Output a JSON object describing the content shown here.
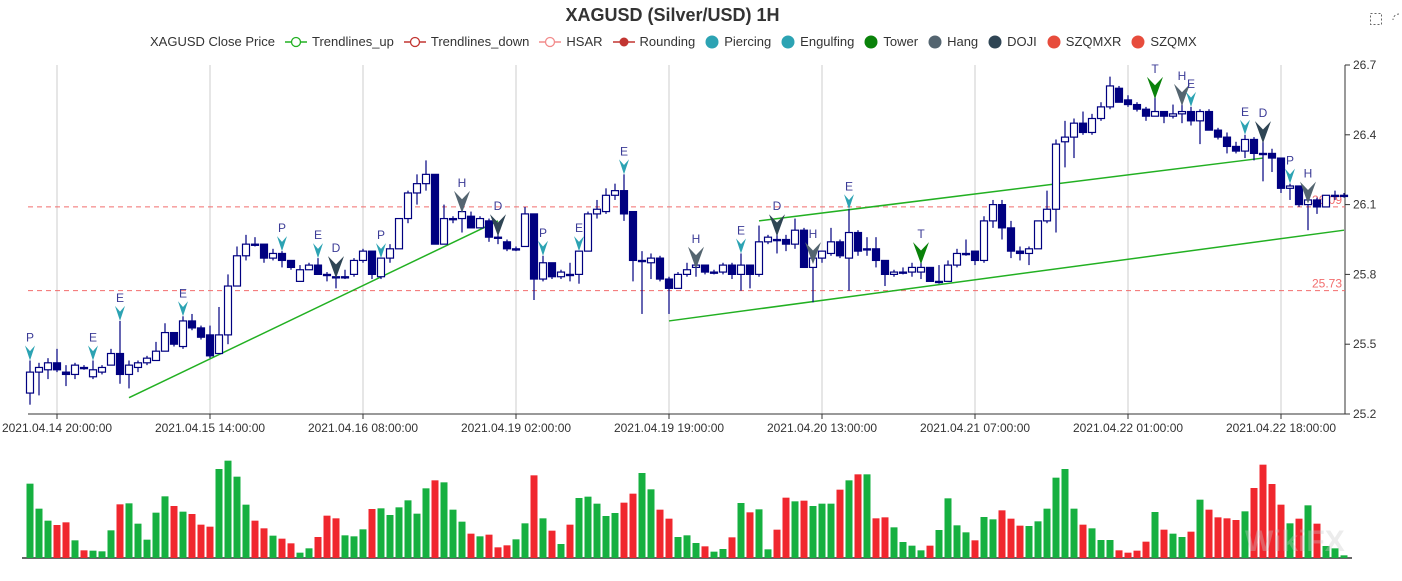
{
  "title": "XAGUSD (Silver/USD) 1H",
  "watermark": "WikiFX",
  "toolbox": [
    "zoom-icon",
    "restore-icon"
  ],
  "legend": [
    {
      "label": "XAGUSD Close Price",
      "icon": "none",
      "color": "#000080"
    },
    {
      "label": "Trendlines_up",
      "icon": "line-circle",
      "color": "#22b022"
    },
    {
      "label": "Trendlines_down",
      "icon": "line-circle",
      "color": "#c23531"
    },
    {
      "label": "HSAR",
      "icon": "line-circle",
      "color": "#f28b8b"
    },
    {
      "label": "Rounding",
      "icon": "line-dot",
      "color": "#c23531"
    },
    {
      "label": "Piercing",
      "icon": "dot",
      "color": "#2ca3b3"
    },
    {
      "label": "Engulfing",
      "icon": "dot",
      "color": "#2ca3b3"
    },
    {
      "label": "Tower",
      "icon": "dot",
      "color": "#0a820a"
    },
    {
      "label": "Hang",
      "icon": "dot",
      "color": "#546570"
    },
    {
      "label": "DOJI",
      "icon": "dot",
      "color": "#2f4554"
    },
    {
      "label": "SZQMXR",
      "icon": "dot",
      "color": "#e74c3c"
    },
    {
      "label": "SZQMX",
      "icon": "dot",
      "color": "#e74c3c"
    }
  ],
  "chart_data": {
    "type": "candlestick",
    "title": "XAGUSD (Silver/USD) 1H",
    "ylim": [
      25.2,
      26.7
    ],
    "yticks": [
      25.2,
      25.5,
      25.8,
      26.1,
      26.4,
      26.7
    ],
    "xtick_labels": [
      "2021.04.14 20:00:00",
      "2021.04.15 14:00:00",
      "2021.04.16 08:00:00",
      "2021.04.19 02:00:00",
      "2021.04.19 19:00:00",
      "2021.04.20 13:00:00",
      "2021.04.21 07:00:00",
      "2021.04.22 01:00:00",
      "2021.04.22 18:00:00"
    ],
    "xtick_first_index": 3,
    "xtick_every": 17,
    "grid_x": true,
    "candle_color": "#000080",
    "ohlc_format": [
      "open",
      "close",
      "low",
      "high"
    ],
    "ohlc": [
      [
        25.29,
        25.38,
        25.24,
        25.43
      ],
      [
        25.38,
        25.4,
        25.28,
        25.42
      ],
      [
        25.39,
        25.42,
        25.35,
        25.44
      ],
      [
        25.42,
        25.39,
        25.38,
        25.48
      ],
      [
        25.38,
        25.37,
        25.32,
        25.41
      ],
      [
        25.37,
        25.41,
        25.35,
        25.42
      ],
      [
        25.4,
        25.4,
        25.39,
        25.41
      ],
      [
        25.36,
        25.39,
        25.35,
        25.43
      ],
      [
        25.38,
        25.4,
        25.37,
        25.41
      ],
      [
        25.41,
        25.46,
        25.41,
        25.48
      ],
      [
        25.46,
        25.37,
        25.33,
        25.6
      ],
      [
        25.37,
        25.41,
        25.31,
        25.43
      ],
      [
        25.4,
        25.42,
        25.38,
        25.43
      ],
      [
        25.42,
        25.44,
        25.41,
        25.45
      ],
      [
        25.43,
        25.47,
        25.43,
        25.51
      ],
      [
        25.47,
        25.55,
        25.47,
        25.59
      ],
      [
        25.55,
        25.5,
        25.49,
        25.55
      ],
      [
        25.49,
        25.6,
        25.48,
        25.62
      ],
      [
        25.6,
        25.57,
        25.56,
        25.63
      ],
      [
        25.57,
        25.53,
        25.52,
        25.58
      ],
      [
        25.54,
        25.45,
        25.44,
        25.58
      ],
      [
        25.46,
        25.54,
        25.46,
        25.66
      ],
      [
        25.54,
        25.75,
        25.5,
        25.8
      ],
      [
        25.75,
        25.88,
        25.75,
        25.92
      ],
      [
        25.88,
        25.93,
        25.86,
        25.97
      ],
      [
        25.93,
        25.93,
        25.92,
        25.96
      ],
      [
        25.93,
        25.87,
        25.85,
        25.93
      ],
      [
        25.87,
        25.89,
        25.86,
        25.91
      ],
      [
        25.89,
        25.86,
        25.83,
        25.9
      ],
      [
        25.86,
        25.83,
        25.82,
        25.86
      ],
      [
        25.77,
        25.82,
        25.77,
        25.84
      ],
      [
        25.82,
        25.84,
        25.82,
        25.85
      ],
      [
        25.84,
        25.8,
        25.8,
        25.87
      ],
      [
        25.8,
        25.8,
        25.77,
        25.81
      ],
      [
        25.79,
        25.79,
        25.74,
        25.81
      ],
      [
        25.79,
        25.79,
        25.78,
        25.82
      ],
      [
        25.8,
        25.86,
        25.79,
        25.87
      ],
      [
        25.86,
        25.9,
        25.85,
        25.91
      ],
      [
        25.9,
        25.8,
        25.78,
        25.9
      ],
      [
        25.79,
        25.87,
        25.78,
        25.87
      ],
      [
        25.87,
        25.91,
        25.85,
        25.93
      ],
      [
        25.91,
        26.04,
        25.91,
        26.04
      ],
      [
        26.04,
        26.15,
        26.02,
        26.16
      ],
      [
        26.15,
        26.19,
        26.1,
        26.23
      ],
      [
        26.19,
        26.23,
        26.16,
        26.29
      ],
      [
        26.23,
        25.93,
        25.93,
        26.23
      ],
      [
        25.93,
        26.04,
        25.93,
        26.1
      ],
      [
        26.04,
        26.04,
        26.02,
        26.05
      ],
      [
        26.04,
        26.07,
        25.98,
        26.09
      ],
      [
        26.05,
        26.0,
        26.0,
        26.07
      ],
      [
        26.0,
        26.04,
        26.0,
        26.05
      ],
      [
        26.03,
        25.96,
        25.94,
        26.04
      ],
      [
        25.96,
        25.96,
        25.93,
        25.99
      ],
      [
        25.94,
        25.91,
        25.9,
        25.95
      ],
      [
        25.91,
        25.91,
        25.9,
        25.92
      ],
      [
        25.92,
        26.06,
        25.92,
        26.09
      ],
      [
        26.06,
        25.78,
        25.69,
        26.06
      ],
      [
        25.78,
        25.85,
        25.77,
        25.88
      ],
      [
        25.85,
        25.79,
        25.78,
        25.85
      ],
      [
        25.79,
        25.81,
        25.78,
        25.82
      ],
      [
        25.8,
        25.8,
        25.77,
        25.85
      ],
      [
        25.8,
        25.9,
        25.76,
        25.9
      ],
      [
        25.9,
        26.06,
        25.9,
        26.07
      ],
      [
        26.06,
        26.08,
        26.04,
        26.12
      ],
      [
        26.07,
        26.14,
        26.06,
        26.17
      ],
      [
        26.14,
        26.16,
        26.12,
        26.19
      ],
      [
        26.16,
        26.06,
        26.03,
        26.23
      ],
      [
        26.07,
        25.86,
        25.77,
        26.07
      ],
      [
        25.86,
        25.86,
        25.63,
        25.9
      ],
      [
        25.85,
        25.87,
        25.78,
        25.89
      ],
      [
        25.87,
        25.78,
        25.77,
        25.88
      ],
      [
        25.78,
        25.74,
        25.63,
        25.79
      ],
      [
        25.74,
        25.8,
        25.74,
        25.81
      ],
      [
        25.8,
        25.82,
        25.79,
        25.85
      ],
      [
        25.83,
        25.84,
        25.79,
        25.85
      ],
      [
        25.84,
        25.81,
        25.8,
        25.84
      ],
      [
        25.81,
        25.81,
        25.8,
        25.82
      ],
      [
        25.81,
        25.84,
        25.8,
        25.85
      ],
      [
        25.84,
        25.8,
        25.78,
        25.85
      ],
      [
        25.8,
        25.84,
        25.73,
        25.89
      ],
      [
        25.84,
        25.8,
        25.74,
        25.84
      ],
      [
        25.8,
        25.94,
        25.79,
        26.01
      ],
      [
        25.94,
        25.96,
        25.93,
        25.97
      ],
      [
        25.95,
        25.95,
        25.89,
        25.99
      ],
      [
        25.95,
        25.93,
        25.9,
        25.97
      ],
      [
        25.93,
        25.99,
        25.91,
        26.04
      ],
      [
        25.99,
        25.83,
        25.83,
        26.0
      ],
      [
        25.83,
        25.87,
        25.68,
        25.87
      ],
      [
        25.87,
        25.9,
        25.85,
        25.9
      ],
      [
        25.89,
        25.94,
        25.88,
        26.0
      ],
      [
        25.94,
        25.88,
        25.87,
        25.95
      ],
      [
        25.87,
        25.98,
        25.73,
        26.08
      ],
      [
        25.98,
        25.9,
        25.88,
        25.99
      ],
      [
        25.91,
        25.91,
        25.88,
        25.96
      ],
      [
        25.91,
        25.86,
        25.83,
        25.96
      ],
      [
        25.86,
        25.8,
        25.75,
        25.86
      ],
      [
        25.8,
        25.81,
        25.79,
        25.82
      ],
      [
        25.81,
        25.81,
        25.8,
        25.83
      ],
      [
        25.81,
        25.83,
        25.79,
        25.85
      ],
      [
        25.81,
        25.83,
        25.78,
        25.87
      ],
      [
        25.83,
        25.77,
        25.77,
        25.83
      ],
      [
        25.77,
        25.77,
        25.76,
        25.84
      ],
      [
        25.77,
        25.84,
        25.77,
        25.86
      ],
      [
        25.84,
        25.89,
        25.83,
        25.91
      ],
      [
        25.89,
        25.89,
        25.88,
        25.95
      ],
      [
        25.9,
        25.86,
        25.84,
        25.9
      ],
      [
        25.86,
        26.03,
        25.85,
        26.05
      ],
      [
        26.03,
        26.1,
        26.0,
        26.12
      ],
      [
        26.1,
        26.0,
        25.95,
        26.12
      ],
      [
        26.0,
        25.9,
        25.87,
        26.03
      ],
      [
        25.9,
        25.89,
        25.86,
        25.92
      ],
      [
        25.89,
        25.91,
        25.84,
        25.92
      ],
      [
        25.91,
        26.03,
        25.91,
        26.03
      ],
      [
        26.03,
        26.08,
        26.02,
        26.16
      ],
      [
        26.08,
        26.36,
        25.98,
        26.38
      ],
      [
        26.37,
        26.39,
        26.26,
        26.46
      ],
      [
        26.39,
        26.45,
        26.3,
        26.47
      ],
      [
        26.45,
        26.41,
        26.4,
        26.5
      ],
      [
        26.41,
        26.47,
        26.4,
        26.49
      ],
      [
        26.47,
        26.52,
        26.46,
        26.54
      ],
      [
        26.52,
        26.61,
        26.51,
        26.65
      ],
      [
        26.6,
        26.54,
        26.54,
        26.61
      ],
      [
        26.55,
        26.53,
        26.52,
        26.57
      ],
      [
        26.53,
        26.51,
        26.5,
        26.54
      ],
      [
        26.51,
        26.48,
        26.46,
        26.52
      ],
      [
        26.48,
        26.5,
        26.48,
        26.58
      ],
      [
        26.5,
        26.48,
        26.45,
        26.5
      ],
      [
        26.48,
        26.49,
        26.47,
        26.53
      ],
      [
        26.49,
        26.5,
        26.45,
        26.55
      ],
      [
        26.5,
        26.46,
        26.44,
        26.52
      ],
      [
        26.46,
        26.5,
        26.36,
        26.51
      ],
      [
        26.5,
        26.42,
        26.42,
        26.51
      ],
      [
        26.42,
        26.39,
        26.38,
        26.43
      ],
      [
        26.39,
        26.35,
        26.32,
        26.41
      ],
      [
        26.35,
        26.33,
        26.32,
        26.37
      ],
      [
        26.33,
        26.38,
        26.3,
        26.4
      ],
      [
        26.38,
        26.32,
        26.29,
        26.39
      ],
      [
        26.32,
        26.32,
        26.2,
        26.39
      ],
      [
        26.32,
        26.3,
        26.24,
        26.34
      ],
      [
        26.3,
        26.17,
        26.15,
        26.3
      ],
      [
        26.17,
        26.18,
        26.12,
        26.19
      ],
      [
        26.18,
        26.1,
        26.09,
        26.18
      ],
      [
        26.1,
        26.12,
        25.99,
        26.13
      ],
      [
        26.12,
        26.09,
        26.06,
        26.13
      ],
      [
        26.09,
        26.14,
        26.09,
        26.14
      ],
      [
        26.14,
        26.14,
        26.12,
        26.16
      ],
      [
        26.14,
        26.14,
        26.13,
        26.15
      ]
    ],
    "hsar_levels": [
      {
        "value": 26.09,
        "label": "26.09"
      },
      {
        "value": 25.73,
        "label": "25.73"
      }
    ],
    "hsar_color": "#f26d6d",
    "trendlines_up": [
      {
        "from": [
          11,
          25.27
        ],
        "to": [
          52,
          26.03
        ]
      },
      {
        "from": [
          81,
          26.03
        ],
        "to": [
          137,
          26.3
        ]
      },
      {
        "from": [
          71,
          25.6
        ],
        "to": [
          146,
          25.99
        ]
      }
    ],
    "trendline_color": "#22b022",
    "patterns": [
      {
        "i": 0,
        "label": "P",
        "type": "Piercing"
      },
      {
        "i": 7,
        "label": "E",
        "type": "Engulfing"
      },
      {
        "i": 10,
        "label": "E",
        "type": "Engulfing"
      },
      {
        "i": 17,
        "label": "E",
        "type": "Engulfing"
      },
      {
        "i": 28,
        "label": "P",
        "type": "Piercing"
      },
      {
        "i": 32,
        "label": "E",
        "type": "Engulfing"
      },
      {
        "i": 34,
        "label": "D",
        "type": "DOJI"
      },
      {
        "i": 39,
        "label": "P",
        "type": "Piercing"
      },
      {
        "i": 48,
        "label": "H",
        "type": "Hang"
      },
      {
        "i": 52,
        "label": "D",
        "type": "DOJI"
      },
      {
        "i": 57,
        "label": "P",
        "type": "Piercing"
      },
      {
        "i": 61,
        "label": "E",
        "type": "Engulfing"
      },
      {
        "i": 66,
        "label": "E",
        "type": "Engulfing"
      },
      {
        "i": 74,
        "label": "H",
        "type": "Hang"
      },
      {
        "i": 79,
        "label": "E",
        "type": "Engulfing"
      },
      {
        "i": 83,
        "label": "D",
        "type": "DOJI"
      },
      {
        "i": 87,
        "label": "H",
        "type": "Hang"
      },
      {
        "i": 91,
        "label": "E",
        "type": "Engulfing"
      },
      {
        "i": 99,
        "label": "T",
        "type": "Tower"
      },
      {
        "i": 125,
        "label": "T",
        "type": "Tower"
      },
      {
        "i": 128,
        "label": "H",
        "type": "Hang"
      },
      {
        "i": 129,
        "label": "E",
        "type": "Engulfing"
      },
      {
        "i": 135,
        "label": "E",
        "type": "Engulfing"
      },
      {
        "i": 137,
        "label": "D",
        "type": "DOJI"
      },
      {
        "i": 140,
        "label": "P",
        "type": "Piercing"
      },
      {
        "i": 142,
        "label": "H",
        "type": "Hang"
      }
    ],
    "pattern_colors": {
      "Piercing": "#2ca3b3",
      "Engulfing": "#2ca3b3",
      "Tower": "#0a820a",
      "Hang": "#546570",
      "DOJI": "#2f4554"
    },
    "volume": [
      223,
      148,
      112,
      99,
      107,
      53,
      23,
      22,
      20,
      83,
      161,
      164,
      103,
      55,
      136,
      185,
      156,
      139,
      132,
      100,
      94,
      267,
      292,
      244,
      160,
      112,
      89,
      67,
      58,
      44,
      16,
      29,
      63,
      127,
      119,
      68,
      65,
      86,
      147,
      149,
      129,
      152,
      173,
      133,
      209,
      233,
      227,
      145,
      109,
      73,
      65,
      70,
      32,
      38,
      56,
      104,
      248,
      119,
      82,
      42,
      100,
      180,
      184,
      163,
      126,
      135,
      166,
      193,
      255,
      206,
      145,
      118,
      63,
      68,
      45,
      35,
      19,
      27,
      62,
      165,
      137,
      146,
      26,
      85,
      181,
      170,
      172,
      156,
      163,
      163,
      205,
      233,
      251,
      251,
      119,
      122,
      92,
      48,
      37,
      23,
      37,
      84,
      179,
      98,
      77,
      53,
      123,
      116,
      143,
      118,
      97,
      96,
      110,
      148,
      241,
      267,
      148,
      100,
      89,
      54,
      54,
      23,
      16,
      22,
      49,
      138,
      85,
      73,
      63,
      79,
      175,
      145,
      122,
      119,
      114,
      140,
      210,
      280,
      222,
      160,
      104,
      118,
      158,
      103,
      36,
      29,
      8
    ],
    "volume_dir": "GGGRRGRGGGRGGGGGRGRRRGGGGRRGRRGGRRRGGGRGGGGGGRGGGRGRRRGGRGRGRGGGGGRRGGRRGGGRGGRGRGGRRGRGGGRGRGRRGGGGRGGGGRGGRRRGGGGGGRGGGRRRRGRGGRGRRRRGRRRRGRGRGGG",
    "volume_colors": {
      "G": "#16b040",
      "R": "#f0272e"
    }
  }
}
